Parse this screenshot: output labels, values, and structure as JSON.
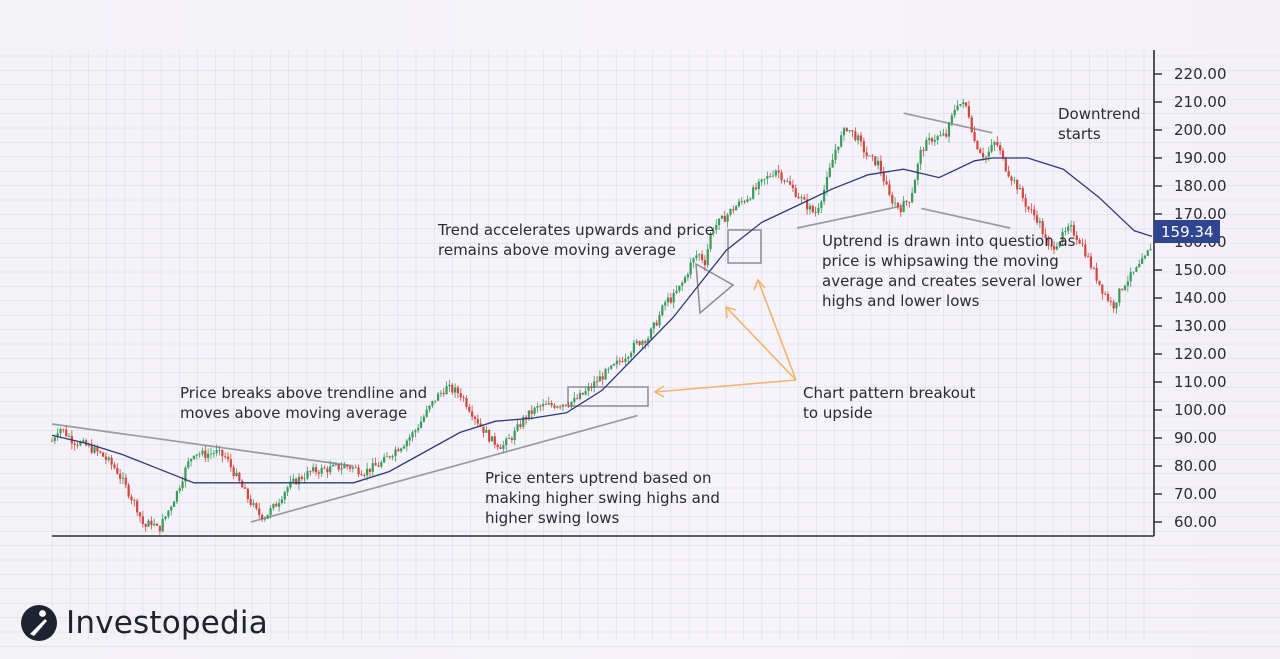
{
  "brand": {
    "name": "Investopedia"
  },
  "colors": {
    "up": "#3a9a5c",
    "down": "#d2463e",
    "moving_average": "#2d3a7c",
    "trendline": "#9a9aa3",
    "arrow": "#f2b36e",
    "price_label_bg": "#2f4590",
    "axis": "#2b2b33",
    "grid": "#dcdce4"
  },
  "chart_data": {
    "type": "candlestick",
    "title": "",
    "xlabel": "",
    "ylabel": "",
    "ylim": [
      55,
      225
    ],
    "y_ticks": [
      "60.00",
      "70.00",
      "80.00",
      "90.00",
      "100.00",
      "110.00",
      "120.00",
      "130.00",
      "140.00",
      "150.00",
      "160.00",
      "170.00",
      "180.00",
      "190.00",
      "200.00",
      "210.00",
      "220.00"
    ],
    "grid": true,
    "last_price": "159.34",
    "price_path": [
      [
        0,
        89
      ],
      [
        4,
        94
      ],
      [
        12,
        89
      ],
      [
        20,
        87
      ],
      [
        28,
        84
      ],
      [
        36,
        79
      ],
      [
        42,
        72
      ],
      [
        48,
        65
      ],
      [
        52,
        58
      ],
      [
        56,
        60
      ],
      [
        60,
        57
      ],
      [
        64,
        62
      ],
      [
        70,
        70
      ],
      [
        76,
        80
      ],
      [
        80,
        85
      ],
      [
        86,
        84
      ],
      [
        92,
        85
      ],
      [
        98,
        83
      ],
      [
        104,
        76
      ],
      [
        110,
        69
      ],
      [
        116,
        63
      ],
      [
        120,
        62
      ],
      [
        126,
        66
      ],
      [
        132,
        72
      ],
      [
        138,
        75
      ],
      [
        146,
        78
      ],
      [
        156,
        79
      ],
      [
        166,
        80
      ],
      [
        176,
        78
      ],
      [
        186,
        81
      ],
      [
        192,
        85
      ],
      [
        198,
        88
      ],
      [
        204,
        92
      ],
      [
        210,
        98
      ],
      [
        216,
        104
      ],
      [
        222,
        108
      ],
      [
        230,
        106
      ],
      [
        236,
        100
      ],
      [
        242,
        94
      ],
      [
        248,
        89
      ],
      [
        254,
        87
      ],
      [
        260,
        91
      ],
      [
        266,
        97
      ],
      [
        274,
        101
      ],
      [
        284,
        102
      ],
      [
        294,
        103
      ],
      [
        302,
        107
      ],
      [
        308,
        111
      ],
      [
        316,
        115
      ],
      [
        324,
        120
      ],
      [
        330,
        124
      ],
      [
        336,
        126
      ],
      [
        342,
        133
      ],
      [
        346,
        139
      ],
      [
        350,
        140
      ],
      [
        356,
        146
      ],
      [
        360,
        152
      ],
      [
        364,
        156
      ],
      [
        368,
        153
      ],
      [
        372,
        165
      ],
      [
        378,
        168
      ],
      [
        384,
        172
      ],
      [
        392,
        176
      ],
      [
        400,
        181
      ],
      [
        408,
        186
      ],
      [
        416,
        180
      ],
      [
        424,
        174
      ],
      [
        430,
        170
      ],
      [
        436,
        180
      ],
      [
        442,
        194
      ],
      [
        448,
        201
      ],
      [
        454,
        197
      ],
      [
        460,
        190
      ],
      [
        466,
        188
      ],
      [
        472,
        176
      ],
      [
        478,
        172
      ],
      [
        484,
        176
      ],
      [
        490,
        193
      ],
      [
        496,
        197
      ],
      [
        504,
        198
      ],
      [
        510,
        210
      ],
      [
        516,
        208
      ],
      [
        520,
        196
      ],
      [
        526,
        190
      ],
      [
        532,
        196
      ],
      [
        538,
        186
      ],
      [
        544,
        180
      ],
      [
        550,
        172
      ],
      [
        556,
        168
      ],
      [
        562,
        157
      ],
      [
        568,
        161
      ],
      [
        574,
        165
      ],
      [
        580,
        160
      ],
      [
        586,
        151
      ],
      [
        592,
        143
      ],
      [
        598,
        137
      ],
      [
        604,
        145
      ],
      [
        610,
        149
      ],
      [
        616,
        154
      ],
      [
        620,
        159.34
      ]
    ],
    "moving_average": [
      [
        0,
        91
      ],
      [
        20,
        88
      ],
      [
        40,
        84
      ],
      [
        60,
        79
      ],
      [
        80,
        74
      ],
      [
        100,
        74
      ],
      [
        120,
        74
      ],
      [
        140,
        74
      ],
      [
        160,
        74
      ],
      [
        170,
        74
      ],
      [
        190,
        78
      ],
      [
        210,
        85
      ],
      [
        230,
        92
      ],
      [
        250,
        96
      ],
      [
        270,
        97
      ],
      [
        290,
        99
      ],
      [
        310,
        107
      ],
      [
        330,
        120
      ],
      [
        350,
        133
      ],
      [
        365,
        145
      ],
      [
        380,
        157
      ],
      [
        400,
        167
      ],
      [
        420,
        173
      ],
      [
        440,
        179
      ],
      [
        460,
        184
      ],
      [
        480,
        186
      ],
      [
        500,
        183
      ],
      [
        520,
        189
      ],
      [
        530,
        190
      ],
      [
        550,
        190
      ],
      [
        570,
        186
      ],
      [
        590,
        176
      ],
      [
        610,
        164
      ],
      [
        620,
        162
      ]
    ],
    "trendlines": [
      {
        "name": "descending",
        "points": [
          [
            0,
            95
          ],
          [
            170,
            80
          ]
        ]
      },
      {
        "name": "ascending",
        "points": [
          [
            112,
            60
          ],
          [
            330,
            98
          ]
        ]
      },
      {
        "name": "flag-top",
        "points": [
          [
            480,
            206
          ],
          [
            530,
            199
          ]
        ]
      },
      {
        "name": "flag-bottom",
        "points": [
          [
            420,
            165
          ],
          [
            480,
            173
          ]
        ]
      },
      {
        "name": "wedge-bottom",
        "points": [
          [
            490,
            172
          ],
          [
            540,
            165
          ]
        ]
      }
    ],
    "annotations": [
      {
        "lines": [
          "Price breaks above trendline and",
          "moves above moving average"
        ]
      },
      {
        "lines": [
          "Price enters uptrend based on",
          "making higher swing highs and",
          "higher swing lows"
        ]
      },
      {
        "lines": [
          "Trend accelerates upwards and price",
          "remains above moving average"
        ]
      },
      {
        "lines": [
          "Chart pattern breakout",
          "to upside"
        ]
      },
      {
        "lines": [
          "Uptrend is drawn into question as",
          "price is whipsawing the moving",
          "average and creates several lower",
          "highs and lower lows"
        ]
      },
      {
        "lines": [
          "Downtrend",
          "starts"
        ]
      }
    ]
  }
}
